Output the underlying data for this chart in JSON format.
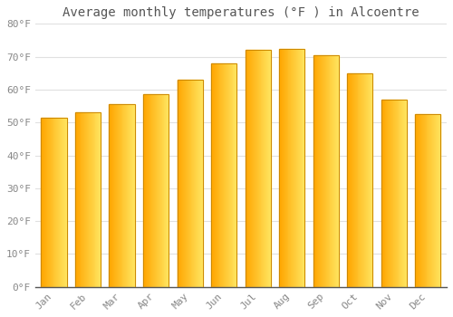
{
  "title": "Average monthly temperatures (°F ) in Alcoentre",
  "months": [
    "Jan",
    "Feb",
    "Mar",
    "Apr",
    "May",
    "Jun",
    "Jul",
    "Aug",
    "Sep",
    "Oct",
    "Nov",
    "Dec"
  ],
  "values": [
    51.5,
    53.0,
    55.5,
    58.5,
    63.0,
    68.0,
    72.0,
    72.5,
    70.5,
    65.0,
    57.0,
    52.5
  ],
  "bar_color_left": "#FFA500",
  "bar_color_right": "#FFD060",
  "bar_edge_color": "#CC8800",
  "ylim": [
    0,
    80
  ],
  "yticks": [
    0,
    10,
    20,
    30,
    40,
    50,
    60,
    70,
    80
  ],
  "ytick_labels": [
    "0°F",
    "10°F",
    "20°F",
    "30°F",
    "40°F",
    "50°F",
    "60°F",
    "70°F",
    "80°F"
  ],
  "background_color": "#ffffff",
  "grid_color": "#e0e0e0",
  "title_fontsize": 10,
  "tick_fontsize": 8,
  "bar_width": 0.75
}
